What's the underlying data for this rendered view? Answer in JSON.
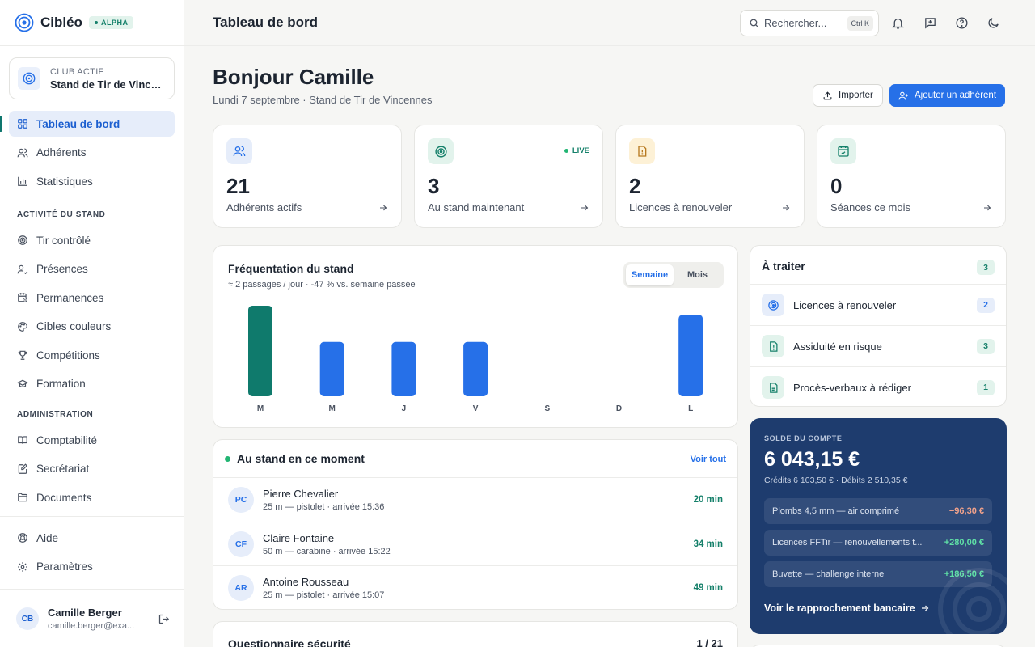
{
  "brand": {
    "name": "Cibléo",
    "badge": "ALPHA"
  },
  "club": {
    "label": "CLUB ACTIF",
    "name": "Stand de Tir de Vincennes"
  },
  "nav": {
    "main": [
      {
        "label": "Tableau de bord",
        "icon": "grid-icon",
        "active": true
      },
      {
        "label": "Adhérents",
        "icon": "users-icon"
      },
      {
        "label": "Statistiques",
        "icon": "bar-chart-icon"
      }
    ],
    "section_activity": "ACTIVITÉ DU STAND",
    "activity": [
      {
        "label": "Tir contrôlé",
        "icon": "target-icon"
      },
      {
        "label": "Présences",
        "icon": "user-check-icon"
      },
      {
        "label": "Permanences",
        "icon": "calendar-clock-icon"
      },
      {
        "label": "Cibles couleurs",
        "icon": "palette-icon"
      },
      {
        "label": "Compétitions",
        "icon": "trophy-icon"
      },
      {
        "label": "Formation",
        "icon": "graduation-cap-icon"
      }
    ],
    "section_admin": "ADMINISTRATION",
    "admin": [
      {
        "label": "Comptabilité",
        "icon": "book-icon"
      },
      {
        "label": "Secrétariat",
        "icon": "edit-doc-icon"
      },
      {
        "label": "Documents",
        "icon": "folder-icon"
      }
    ],
    "footer": [
      {
        "label": "Aide",
        "icon": "help-circle-icon"
      },
      {
        "label": "Paramètres",
        "icon": "gear-icon"
      }
    ]
  },
  "user": {
    "initials": "CB",
    "name": "Camille Berger",
    "email": "camille.berger@exa..."
  },
  "topbar": {
    "title": "Tableau de bord",
    "search_placeholder": "Rechercher...",
    "shortcut": "Ctrl K"
  },
  "greeting": {
    "title": "Bonjour Camille",
    "subtitle": "Lundi 7 septembre · Stand de Tir de Vincennes"
  },
  "actions": {
    "import": "Importer",
    "add_member": "Ajouter un adhérent"
  },
  "stats": [
    {
      "value": "21",
      "label": "Adhérents actifs",
      "icon": "users-icon",
      "color": "#2670e8",
      "bg": "#e6edfa"
    },
    {
      "value": "3",
      "label": "Au stand maintenant",
      "icon": "target-icon",
      "color": "#15806a",
      "bg": "#e2f3ec",
      "live": "LIVE"
    },
    {
      "value": "2",
      "label": "Licences à renouveler",
      "icon": "alert-file-icon",
      "color": "#b7791f",
      "bg": "#fdf1d6"
    },
    {
      "value": "0",
      "label": "Séances ce mois",
      "icon": "calendar-check-icon",
      "color": "#15806a",
      "bg": "#e2f3ec"
    }
  ],
  "attendance": {
    "title": "Fréquentation du stand",
    "subtitle": "≈ 2 passages / jour · -47 % vs. semaine passée",
    "toggle": [
      "Semaine",
      "Mois"
    ],
    "selected": "Semaine"
  },
  "chart_data": {
    "type": "bar",
    "title": "Fréquentation du stand",
    "categories": [
      "M",
      "M",
      "J",
      "V",
      "S",
      "D",
      "L"
    ],
    "values": [
      5,
      3,
      3,
      3,
      0,
      0,
      4.5
    ],
    "highlight_index": 0,
    "colors": {
      "default": "#2670e8",
      "highlight": "#0f7a6c"
    },
    "xlabel": "",
    "ylabel": "",
    "ylim": [
      0,
      5
    ],
    "grid": false
  },
  "todo": {
    "title": "À traiter",
    "total": "3",
    "items": [
      {
        "label": "Licences à renouveler",
        "count": "2",
        "icon": "target-icon",
        "style": "blue"
      },
      {
        "label": "Assiduité en risque",
        "count": "3",
        "icon": "alert-file-icon",
        "style": "green"
      },
      {
        "label": "Procès-verbaux à rédiger",
        "count": "1",
        "icon": "document-icon",
        "style": "green"
      }
    ]
  },
  "account": {
    "label": "SOLDE DU COMPTE",
    "balance": "6 043,15 €",
    "summary": "Crédits 6 103,50 € · Débits 2 510,35 €",
    "transactions": [
      {
        "label": "Plombs 4,5 mm — air comprimé",
        "amount": "−96,30 €",
        "color": "#f3a38b"
      },
      {
        "label": "Licences FFTir — renouvellements t...",
        "amount": "+280,00 €",
        "color": "#5fe0a6"
      },
      {
        "label": "Buvette — challenge interne",
        "amount": "+186,50 €",
        "color": "#5fe0a6"
      }
    ],
    "link": "Voir le rapprochement bancaire"
  },
  "present": {
    "title": "Au stand en ce moment",
    "link": "Voir tout",
    "people": [
      {
        "initials": "PC",
        "name": "Pierre Chevalier",
        "detail": "25 m — pistolet · arrivée 15:36",
        "duration": "20 min"
      },
      {
        "initials": "CF",
        "name": "Claire Fontaine",
        "detail": "50 m — carabine · arrivée 15:22",
        "duration": "34 min"
      },
      {
        "initials": "AR",
        "name": "Antoine Rousseau",
        "detail": "25 m — pistolet · arrivée 15:07",
        "duration": "49 min"
      }
    ]
  },
  "quiz": {
    "title": "Questionnaire sécurité",
    "progress": "1 / 21"
  }
}
